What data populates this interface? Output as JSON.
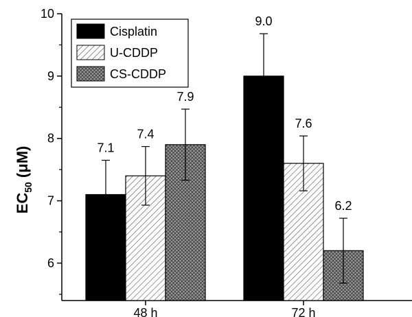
{
  "chart_data": {
    "type": "bar",
    "title": "",
    "xlabel": "",
    "ylabel": "EC50 (μM)",
    "ylabel_parts": {
      "main": "EC",
      "sub": "50",
      "unit": " (μM)"
    },
    "ylim": [
      5.4,
      10
    ],
    "yticks": [
      6,
      7,
      8,
      9,
      10
    ],
    "categories": [
      "48 h",
      "72 h"
    ],
    "series": [
      {
        "name": "Cisplatin",
        "values": [
          7.1,
          9.0
        ],
        "errors": [
          0.55,
          0.68
        ],
        "labels": [
          "7.1",
          "9.0"
        ],
        "fill": "solid"
      },
      {
        "name": "U-CDDP",
        "values": [
          7.4,
          7.6
        ],
        "errors": [
          0.47,
          0.44
        ],
        "labels": [
          "7.4",
          "7.6"
        ],
        "fill": "hatch"
      },
      {
        "name": "CS-CDDP",
        "values": [
          7.9,
          6.2
        ],
        "errors": [
          0.57,
          0.52
        ],
        "labels": [
          "7.9",
          "6.2"
        ],
        "fill": "crosshatch"
      }
    ],
    "legend_position": "top-left",
    "grid": false,
    "colors": {
      "solid": "#000000",
      "hatch_line": "#555555",
      "crosshatch_bg": "#9a9a9a",
      "crosshatch_line": "#333333"
    }
  }
}
